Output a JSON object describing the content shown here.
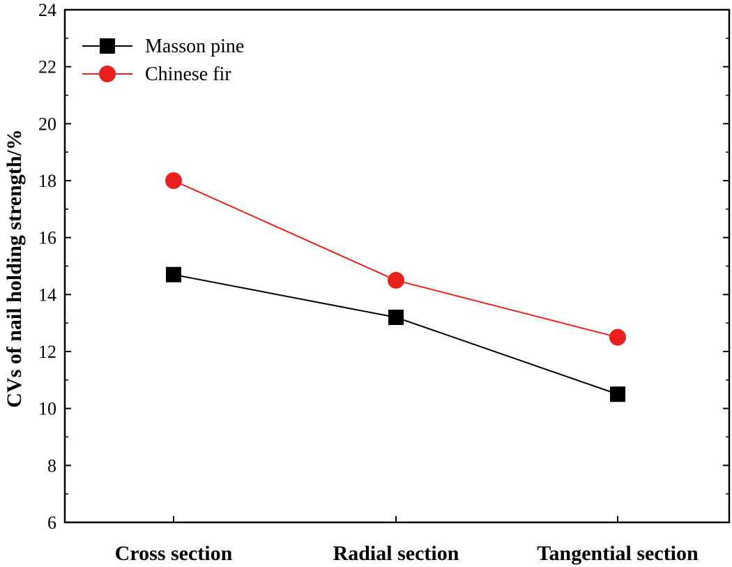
{
  "chart_data": {
    "type": "line",
    "title": "",
    "xlabel": "",
    "ylabel": "CVs of nail holding strength/%",
    "ylim": [
      6,
      24
    ],
    "yticks": [
      "6",
      "8",
      "10",
      "12",
      "14",
      "16",
      "18",
      "20",
      "22",
      "24"
    ],
    "categories": [
      "Cross section",
      "Radial section",
      "Tangential section"
    ],
    "legend_position": "top-left",
    "grid": false,
    "series": [
      {
        "name": "Masson pine",
        "values": [
          14.7,
          13.2,
          10.5
        ],
        "color": "#000000",
        "marker": "square"
      },
      {
        "name": "Chinese fir",
        "values": [
          18.0,
          14.5,
          12.5
        ],
        "color": "#e8211f",
        "marker": "circle"
      }
    ]
  }
}
